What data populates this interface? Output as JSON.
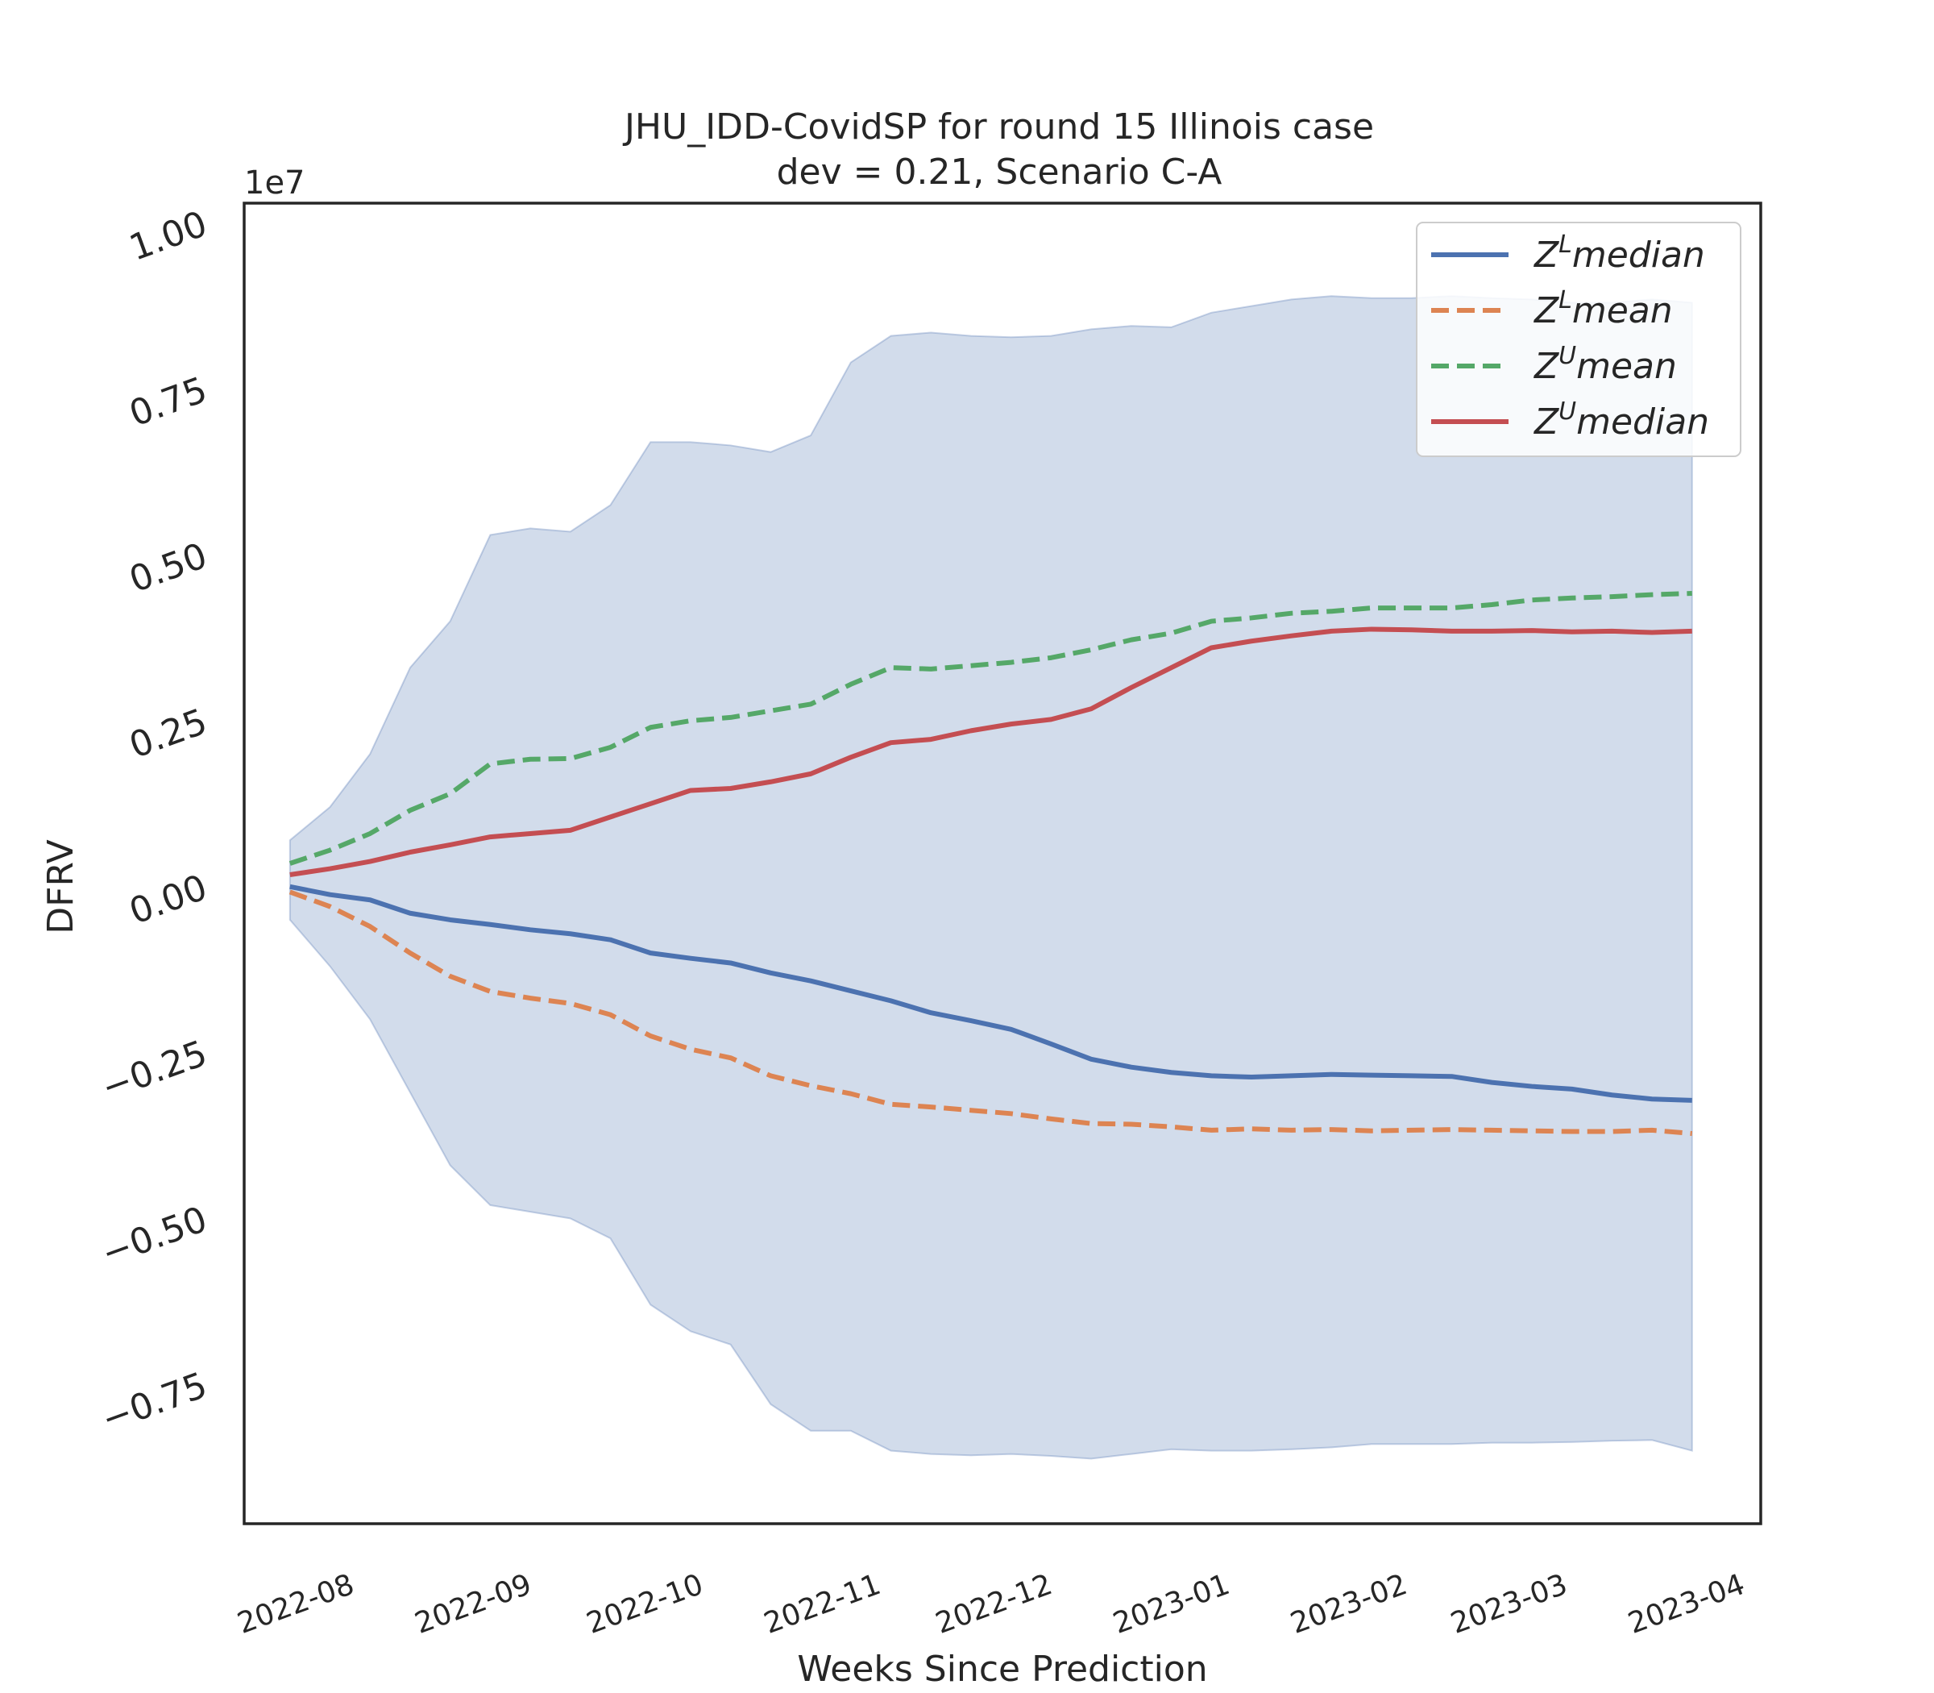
{
  "chart_data": {
    "type": "line",
    "title_line1": "JHU_IDD-CovidSP for round 15 Illinois case",
    "title_line2": "dev = 0.21, Scenario C-A",
    "xlabel": "Weeks Since Prediction",
    "ylabel": "DFRV",
    "y_offset_label": "1e7",
    "y_scale": 10000000,
    "xlim": [
      "2022-07-15",
      "2023-04-06"
    ],
    "ylim": [
      -0.96,
      1.03
    ],
    "x_ticks": [
      {
        "date": "2022-08-01",
        "label": "2022-08"
      },
      {
        "date": "2022-09-01",
        "label": "2022-09"
      },
      {
        "date": "2022-10-01",
        "label": "2022-10"
      },
      {
        "date": "2022-11-01",
        "label": "2022-11"
      },
      {
        "date": "2022-12-01",
        "label": "2022-12"
      },
      {
        "date": "2023-01-01",
        "label": "2023-01"
      },
      {
        "date": "2023-02-01",
        "label": "2023-02"
      },
      {
        "date": "2023-03-01",
        "label": "2023-03"
      },
      {
        "date": "2023-04-01",
        "label": "2023-04"
      }
    ],
    "y_ticks": [
      {
        "value": -0.75,
        "label": "−0.75"
      },
      {
        "value": -0.5,
        "label": "−0.50"
      },
      {
        "value": -0.25,
        "label": "−0.25"
      },
      {
        "value": 0.0,
        "label": "0.00"
      },
      {
        "value": 0.25,
        "label": "0.25"
      },
      {
        "value": 0.5,
        "label": "0.50"
      },
      {
        "value": 0.75,
        "label": "0.75"
      },
      {
        "value": 1.0,
        "label": "1.00"
      }
    ],
    "dates": [
      "2022-07-23",
      "2022-07-30",
      "2022-08-06",
      "2022-08-13",
      "2022-08-20",
      "2022-08-27",
      "2022-09-03",
      "2022-09-10",
      "2022-09-17",
      "2022-09-24",
      "2022-10-01",
      "2022-10-08",
      "2022-10-15",
      "2022-10-22",
      "2022-10-29",
      "2022-11-05",
      "2022-11-12",
      "2022-11-19",
      "2022-11-26",
      "2022-12-03",
      "2022-12-10",
      "2022-12-17",
      "2022-12-24",
      "2022-12-31",
      "2023-01-07",
      "2023-01-14",
      "2023-01-21",
      "2023-01-28",
      "2023-02-04",
      "2023-02-11",
      "2023-02-18",
      "2023-02-25",
      "2023-03-04",
      "2023-03-11",
      "2023-03-18",
      "2023-03-25"
    ],
    "band": {
      "color": "#4c72b0",
      "upper": [
        0.07,
        0.12,
        0.2,
        0.33,
        0.4,
        0.53,
        0.54,
        0.535,
        0.575,
        0.67,
        0.67,
        0.665,
        0.655,
        0.68,
        0.79,
        0.83,
        0.835,
        0.83,
        0.828,
        0.83,
        0.84,
        0.845,
        0.843,
        0.865,
        0.875,
        0.885,
        0.89,
        0.887,
        0.887,
        0.89,
        0.887,
        0.885,
        0.88,
        0.88,
        0.885,
        0.88
      ],
      "lower": [
        -0.05,
        -0.12,
        -0.2,
        -0.31,
        -0.42,
        -0.48,
        -0.49,
        -0.5,
        -0.53,
        -0.63,
        -0.67,
        -0.69,
        -0.78,
        -0.82,
        -0.82,
        -0.85,
        -0.855,
        -0.857,
        -0.855,
        -0.858,
        -0.862,
        -0.855,
        -0.848,
        -0.85,
        -0.85,
        -0.848,
        -0.845,
        -0.84,
        -0.84,
        -0.84,
        -0.838,
        -0.838,
        -0.837,
        -0.835,
        -0.834,
        -0.85
      ]
    },
    "series": [
      {
        "name": "Z^L median",
        "legend_base": "Z",
        "legend_sup": "L",
        "legend_rest": "median",
        "color": "#4c72b0",
        "dash": "solid",
        "values": [
          0.0,
          -0.012,
          -0.02,
          -0.04,
          -0.05,
          -0.057,
          -0.065,
          -0.071,
          -0.08,
          -0.1,
          -0.108,
          -0.115,
          -0.13,
          -0.142,
          -0.157,
          -0.172,
          -0.19,
          -0.202,
          -0.215,
          -0.237,
          -0.26,
          -0.272,
          -0.28,
          -0.285,
          -0.287,
          -0.285,
          -0.283,
          -0.284,
          -0.285,
          -0.286,
          -0.295,
          -0.301,
          -0.305,
          -0.314,
          -0.32,
          -0.322
        ]
      },
      {
        "name": "Z^L mean",
        "legend_base": "Z",
        "legend_sup": "L",
        "legend_rest": "mean",
        "color": "#dd8452",
        "dash": "dashed",
        "values": [
          -0.008,
          -0.03,
          -0.06,
          -0.1,
          -0.135,
          -0.158,
          -0.168,
          -0.176,
          -0.193,
          -0.225,
          -0.245,
          -0.258,
          -0.285,
          -0.3,
          -0.312,
          -0.328,
          -0.332,
          -0.337,
          -0.342,
          -0.35,
          -0.357,
          -0.358,
          -0.362,
          -0.367,
          -0.365,
          -0.367,
          -0.366,
          -0.368,
          -0.367,
          -0.366,
          -0.367,
          -0.368,
          -0.369,
          -0.369,
          -0.367,
          -0.372
        ]
      },
      {
        "name": "Z^U mean",
        "legend_base": "Z",
        "legend_sup": "U",
        "legend_rest": "mean",
        "color": "#55a868",
        "dash": "dashed",
        "values": [
          0.035,
          0.055,
          0.08,
          0.115,
          0.14,
          0.185,
          0.192,
          0.193,
          0.21,
          0.24,
          0.25,
          0.255,
          0.265,
          0.275,
          0.305,
          0.33,
          0.328,
          0.333,
          0.338,
          0.345,
          0.357,
          0.372,
          0.382,
          0.4,
          0.405,
          0.412,
          0.415,
          0.42,
          0.42,
          0.42,
          0.425,
          0.432,
          0.435,
          0.437,
          0.44,
          0.442
        ]
      },
      {
        "name": "Z^U median",
        "legend_base": "Z",
        "legend_sup": "U",
        "legend_rest": "median",
        "color": "#c44e52",
        "dash": "solid",
        "values": [
          0.018,
          0.027,
          0.038,
          0.052,
          0.063,
          0.075,
          0.08,
          0.085,
          0.105,
          0.125,
          0.145,
          0.148,
          0.158,
          0.17,
          0.195,
          0.217,
          0.222,
          0.235,
          0.245,
          0.252,
          0.268,
          0.3,
          0.33,
          0.36,
          0.37,
          0.378,
          0.385,
          0.388,
          0.387,
          0.385,
          0.385,
          0.386,
          0.384,
          0.385,
          0.383,
          0.385
        ]
      }
    ],
    "legend_position": "top-right",
    "grid": false
  }
}
